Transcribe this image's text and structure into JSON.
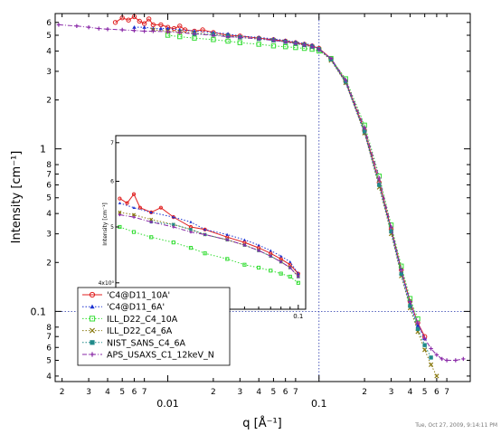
{
  "chart_data": {
    "type": "scatter",
    "x_scale": "log",
    "y_scale": "log",
    "xlabel": "q [Å⁻¹]",
    "ylabel": "Intensity [cm⁻¹]",
    "xlim": [
      0.0018,
      1.0
    ],
    "ylim": [
      0.037,
      6.8
    ],
    "x_major_ticks": [
      {
        "value": 0.01,
        "label": "0.01"
      },
      {
        "value": 0.1,
        "label": "0.1"
      }
    ],
    "x_minor_ticks": [
      {
        "value": 0.002,
        "label": "2"
      },
      {
        "value": 0.003,
        "label": "3"
      },
      {
        "value": 0.004,
        "label": "4"
      },
      {
        "value": 0.005,
        "label": "5"
      },
      {
        "value": 0.006,
        "label": "6"
      },
      {
        "value": 0.007,
        "label": "7"
      },
      {
        "value": 0.02,
        "label": "2"
      },
      {
        "value": 0.03,
        "label": "3"
      },
      {
        "value": 0.04,
        "label": "4"
      },
      {
        "value": 0.05,
        "label": "5"
      },
      {
        "value": 0.06,
        "label": "6"
      },
      {
        "value": 0.07,
        "label": "7"
      },
      {
        "value": 0.2,
        "label": "2"
      },
      {
        "value": 0.3,
        "label": "3"
      },
      {
        "value": 0.4,
        "label": "4"
      },
      {
        "value": 0.5,
        "label": "5"
      },
      {
        "value": 0.6,
        "label": "6"
      },
      {
        "value": 0.7,
        "label": "7"
      }
    ],
    "y_major_ticks": [
      {
        "value": 0.1,
        "label": "0.1"
      },
      {
        "value": 1,
        "label": "1"
      }
    ],
    "y_minor_ticks": [
      {
        "value": 0.04,
        "label": "4"
      },
      {
        "value": 0.05,
        "label": "5"
      },
      {
        "value": 0.06,
        "label": "6"
      },
      {
        "value": 0.07,
        "label": "7"
      },
      {
        "value": 0.08,
        "label": "8"
      },
      {
        "value": 0.2,
        "label": "2"
      },
      {
        "value": 0.3,
        "label": "3"
      },
      {
        "value": 0.4,
        "label": "4"
      },
      {
        "value": 0.5,
        "label": "5"
      },
      {
        "value": 0.6,
        "label": "6"
      },
      {
        "value": 0.7,
        "label": "7"
      },
      {
        "value": 0.8,
        "label": "8"
      },
      {
        "value": 2,
        "label": "2"
      },
      {
        "value": 3,
        "label": "3"
      },
      {
        "value": 4,
        "label": "4"
      },
      {
        "value": 5,
        "label": "5"
      },
      {
        "value": 6,
        "label": "6"
      }
    ],
    "reference_lines": {
      "x": 0.1,
      "y": 0.1
    },
    "legend_position": "bottom-left",
    "series": [
      {
        "name": "'C4@D11_10A'",
        "color": "#e02020",
        "marker": "circle-open",
        "line": "solid",
        "x": [
          0.0045,
          0.005,
          0.0055,
          0.006,
          0.0065,
          0.007,
          0.0075,
          0.008,
          0.009,
          0.01,
          0.011,
          0.012,
          0.013,
          0.015,
          0.017,
          0.02,
          0.025,
          0.03,
          0.04,
          0.05,
          0.06,
          0.07,
          0.08,
          0.09,
          0.1,
          0.12,
          0.15,
          0.2,
          0.25,
          0.3,
          0.35,
          0.4,
          0.45,
          0.5
        ],
        "y": [
          6.0,
          6.4,
          6.2,
          6.5,
          6.1,
          5.9,
          6.3,
          5.8,
          5.8,
          5.6,
          5.5,
          5.7,
          5.4,
          5.3,
          5.4,
          5.2,
          5.0,
          4.95,
          4.8,
          4.7,
          4.6,
          4.5,
          4.4,
          4.3,
          4.15,
          3.6,
          2.6,
          1.3,
          0.62,
          0.32,
          0.18,
          0.115,
          0.085,
          0.07
        ]
      },
      {
        "name": "'C4@D11_6A'",
        "color": "#1a30d0",
        "marker": "triangle",
        "line": "dotted",
        "x": [
          0.006,
          0.007,
          0.008,
          0.009,
          0.01,
          0.012,
          0.015,
          0.02,
          0.025,
          0.03,
          0.04,
          0.05,
          0.06,
          0.07,
          0.08,
          0.09,
          0.1,
          0.12,
          0.15,
          0.2,
          0.25,
          0.3,
          0.35,
          0.4,
          0.45,
          0.5
        ],
        "y": [
          5.6,
          5.6,
          5.5,
          5.5,
          5.5,
          5.4,
          5.3,
          5.2,
          5.1,
          4.95,
          4.85,
          4.75,
          4.65,
          4.55,
          4.45,
          4.35,
          4.15,
          3.55,
          2.55,
          1.25,
          0.6,
          0.31,
          0.17,
          0.11,
          0.082,
          0.068
        ]
      },
      {
        "name": "ILL_D22_C4_10A",
        "color": "#33dd33",
        "marker": "square-open",
        "line": "dotted",
        "x": [
          0.01,
          0.012,
          0.015,
          0.02,
          0.025,
          0.03,
          0.04,
          0.05,
          0.06,
          0.07,
          0.08,
          0.09,
          0.1,
          0.12,
          0.15,
          0.2,
          0.25,
          0.3,
          0.35,
          0.4,
          0.45
        ],
        "y": [
          5.0,
          4.9,
          4.8,
          4.7,
          4.6,
          4.5,
          4.4,
          4.3,
          4.25,
          4.2,
          4.15,
          4.1,
          4.0,
          3.6,
          2.7,
          1.4,
          0.68,
          0.34,
          0.19,
          0.12,
          0.09
        ]
      },
      {
        "name": "ILL_D22_C4_6A",
        "color": "#8a7a10",
        "marker": "cross",
        "line": "dotted",
        "x": [
          0.008,
          0.01,
          0.012,
          0.015,
          0.02,
          0.025,
          0.03,
          0.04,
          0.05,
          0.06,
          0.07,
          0.08,
          0.09,
          0.1,
          0.12,
          0.15,
          0.2,
          0.25,
          0.3,
          0.35,
          0.4,
          0.45,
          0.5,
          0.55,
          0.6
        ],
        "y": [
          5.4,
          5.3,
          5.25,
          5.15,
          5.05,
          4.95,
          4.85,
          4.75,
          4.65,
          4.55,
          4.45,
          4.35,
          4.25,
          4.1,
          3.5,
          2.55,
          1.25,
          0.58,
          0.3,
          0.165,
          0.105,
          0.075,
          0.058,
          0.047,
          0.04
        ]
      },
      {
        "name": "NIST_SANS_C4_6A",
        "color": "#208a8a",
        "marker": "square",
        "line": "dotted",
        "x": [
          0.015,
          0.02,
          0.025,
          0.03,
          0.04,
          0.05,
          0.06,
          0.07,
          0.08,
          0.09,
          0.1,
          0.12,
          0.15,
          0.2,
          0.25,
          0.3,
          0.35,
          0.4,
          0.45,
          0.5,
          0.55
        ],
        "y": [
          5.1,
          5.05,
          4.95,
          4.85,
          4.75,
          4.65,
          4.55,
          4.45,
          4.35,
          4.25,
          4.1,
          3.55,
          2.6,
          1.28,
          0.6,
          0.31,
          0.17,
          0.108,
          0.078,
          0.062,
          0.052
        ]
      },
      {
        "name": "APS_USAXS_C1_12keV_N",
        "color": "#8a2aa8",
        "marker": "plus",
        "line": "dash-dot",
        "x": [
          0.0019,
          0.0025,
          0.003,
          0.0035,
          0.004,
          0.005,
          0.006,
          0.007,
          0.008,
          0.01,
          0.012,
          0.015,
          0.02,
          0.025,
          0.03,
          0.04,
          0.05,
          0.06,
          0.07,
          0.08,
          0.09,
          0.1,
          0.12,
          0.15,
          0.2,
          0.25,
          0.3,
          0.35,
          0.4,
          0.45,
          0.5,
          0.55,
          0.6,
          0.65,
          0.7,
          0.8,
          0.9
        ],
        "y": [
          5.8,
          5.7,
          5.6,
          5.5,
          5.45,
          5.4,
          5.35,
          5.3,
          5.3,
          5.25,
          5.2,
          5.1,
          5.0,
          4.9,
          4.85,
          4.75,
          4.65,
          4.55,
          4.45,
          4.35,
          4.25,
          4.1,
          3.6,
          2.65,
          1.35,
          0.66,
          0.33,
          0.18,
          0.115,
          0.085,
          0.068,
          0.059,
          0.054,
          0.051,
          0.05,
          0.05,
          0.051
        ]
      }
    ],
    "inset": {
      "ylabel": "Intensity [cm⁻¹]",
      "xlim": [
        0.0095,
        0.11
      ],
      "ylim": [
        3.6,
        7.2
      ],
      "x_tick_label": "0.1",
      "y_tick_label": "4x10⁰",
      "y_tick_label_5": "5",
      "y_tick_label_6": "6",
      "y_tick_label_7": "7"
    }
  },
  "timestamp": "Tue, Oct 27, 2009, 9:14:11 PM"
}
